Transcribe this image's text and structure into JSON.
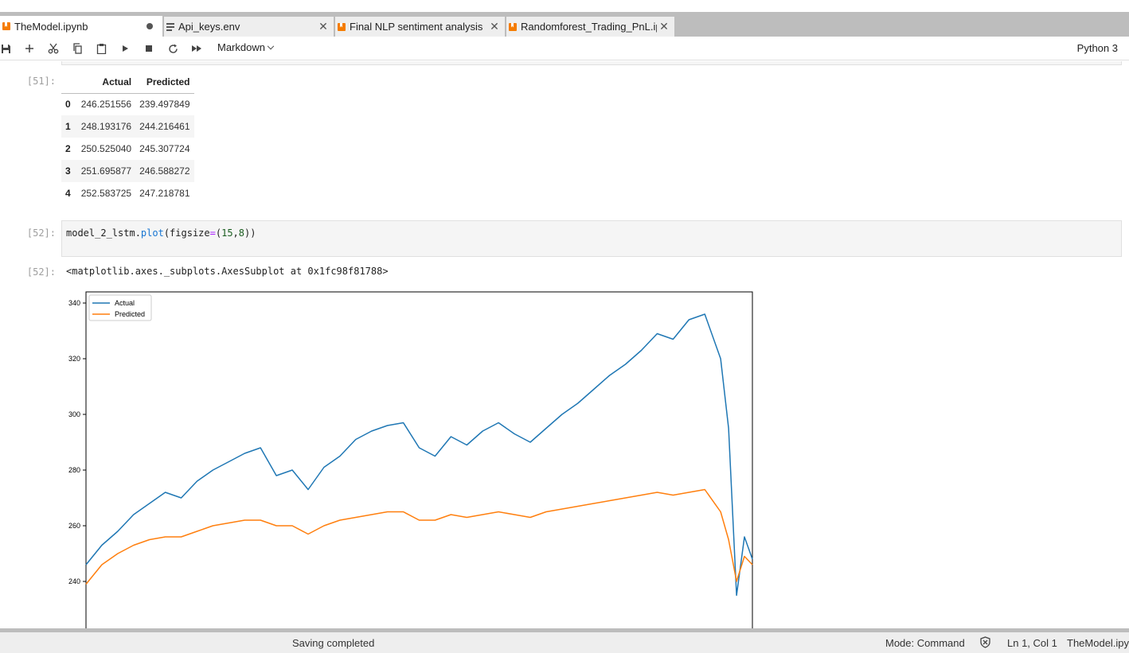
{
  "tabs": [
    {
      "label": "TheModel.ipynb",
      "icon": "notebook-icon",
      "state": "unsaved",
      "active": true
    },
    {
      "label": "Api_keys.env",
      "icon": "text-file-icon"
    },
    {
      "label": "Final NLP sentiment analysis",
      "icon": "notebook-icon"
    },
    {
      "label": "Randomforest_Trading_PnL.ip",
      "icon": "notebook-icon"
    }
  ],
  "toolbar": {
    "buttons": [
      "save-icon",
      "add-cell-icon",
      "cut-icon",
      "copy-icon",
      "paste-icon",
      "run-icon",
      "stop-icon",
      "restart-icon",
      "run-all-icon"
    ],
    "cell_type": "Markdown",
    "kernel": "Python 3"
  },
  "cell51": {
    "prompt": "[51]:",
    "columns": [
      "Actual",
      "Predicted"
    ],
    "rows": [
      {
        "index": "0",
        "actual": "246.251556",
        "predicted": "239.497849"
      },
      {
        "index": "1",
        "actual": "248.193176",
        "predicted": "244.216461"
      },
      {
        "index": "2",
        "actual": "250.525040",
        "predicted": "245.307724"
      },
      {
        "index": "3",
        "actual": "251.695877",
        "predicted": "246.588272"
      },
      {
        "index": "4",
        "actual": "252.583725",
        "predicted": "247.218781"
      }
    ]
  },
  "cell52": {
    "in_prompt": "[52]:",
    "code": {
      "obj": "model_2_lstm.",
      "fn": "plot",
      "p1": "(figsize",
      "eq": "=",
      "p2": "(",
      "n1": "15",
      "comma": ",",
      "n2": "8",
      "p3": "))"
    },
    "out_prompt": "[52]:",
    "out_text": "<matplotlib.axes._subplots.AxesSubplot at 0x1fc98f81788>"
  },
  "chart_data": {
    "type": "line",
    "title": "",
    "xlabel": "",
    "ylabel": "",
    "xlim": [
      0,
      252
    ],
    "ylim": [
      220,
      342
    ],
    "yticks": [
      240,
      260,
      280,
      300,
      320,
      340
    ],
    "grid": false,
    "legend": "top-left",
    "series": [
      {
        "name": "Actual",
        "color": "#1f77b4",
        "x": [
          0,
          6,
          12,
          18,
          24,
          30,
          36,
          42,
          48,
          54,
          60,
          66,
          72,
          78,
          84,
          90,
          96,
          102,
          108,
          114,
          120,
          126,
          132,
          138,
          144,
          150,
          156,
          162,
          168,
          174,
          180,
          186,
          192,
          198,
          204,
          210,
          216,
          222,
          228,
          234,
          240,
          243,
          246,
          249,
          252
        ],
        "y": [
          246,
          253,
          258,
          264,
          268,
          272,
          270,
          276,
          280,
          283,
          286,
          288,
          278,
          280,
          273,
          281,
          285,
          291,
          294,
          296,
          297,
          288,
          285,
          292,
          289,
          294,
          297,
          293,
          290,
          295,
          300,
          304,
          309,
          314,
          318,
          323,
          329,
          327,
          334,
          336,
          320,
          295,
          235,
          256,
          248
        ]
      },
      {
        "name": "Predicted",
        "color": "#ff7f0e",
        "x": [
          0,
          6,
          12,
          18,
          24,
          30,
          36,
          42,
          48,
          54,
          60,
          66,
          72,
          78,
          84,
          90,
          96,
          102,
          108,
          114,
          120,
          126,
          132,
          138,
          144,
          150,
          156,
          162,
          168,
          174,
          180,
          186,
          192,
          198,
          204,
          210,
          216,
          222,
          228,
          234,
          240,
          243,
          246,
          249,
          252
        ],
        "y": [
          239,
          246,
          250,
          253,
          255,
          256,
          256,
          258,
          260,
          261,
          262,
          262,
          260,
          260,
          257,
          260,
          262,
          263,
          264,
          265,
          265,
          262,
          262,
          264,
          263,
          264,
          265,
          264,
          263,
          265,
          266,
          267,
          268,
          269,
          270,
          271,
          272,
          271,
          272,
          273,
          265,
          255,
          240,
          249,
          246
        ]
      }
    ]
  },
  "status": {
    "message": "Saving completed",
    "mode": "Mode: Command",
    "position": "Ln 1, Col 1",
    "file": "TheModel.ipy"
  }
}
